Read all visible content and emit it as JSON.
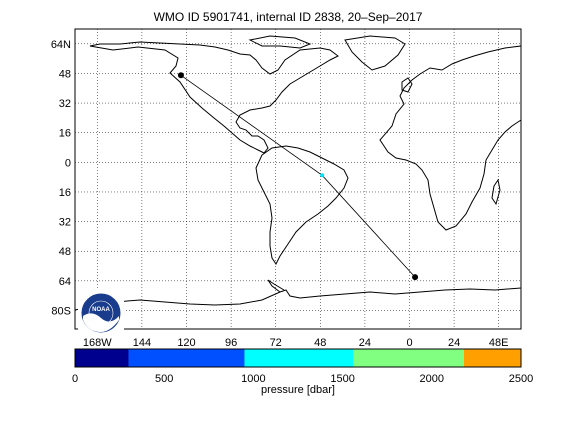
{
  "title": "WMO ID 5901741, internal ID 2838, 20–Sep–2017",
  "map": {
    "lat_ticks": [
      "64N",
      "48",
      "32",
      "16",
      "0",
      "16",
      "32",
      "48",
      "64",
      "80S"
    ],
    "lon_ticks": [
      "168W",
      "144",
      "120",
      "96",
      "72",
      "48",
      "24",
      "0",
      "24",
      "48E"
    ],
    "grid": true,
    "land_outline_color": "#000000",
    "track_color": "#000000",
    "current_position_color": "#00e5ff"
  },
  "track": [
    {
      "lon": -123,
      "lat": 47
    },
    {
      "lon": -47,
      "lat": -7
    },
    {
      "lon": 3,
      "lat": -62
    }
  ],
  "colorbar": {
    "label": "pressure [dbar]",
    "tick_labels": [
      "0",
      "500",
      "1000",
      "1500",
      "2000",
      "2500"
    ],
    "range": [
      0,
      2500
    ],
    "segments": [
      {
        "from": 0,
        "to": 300,
        "color": "#00008f"
      },
      {
        "from": 300,
        "to": 950,
        "color": "#0050ff"
      },
      {
        "from": 950,
        "to": 1560,
        "color": "#00ffff"
      },
      {
        "from": 1560,
        "to": 2180,
        "color": "#80ff80"
      },
      {
        "from": 2180,
        "to": 2500,
        "color": "#ff9f00"
      }
    ]
  },
  "logo": {
    "text": "NOAA"
  }
}
